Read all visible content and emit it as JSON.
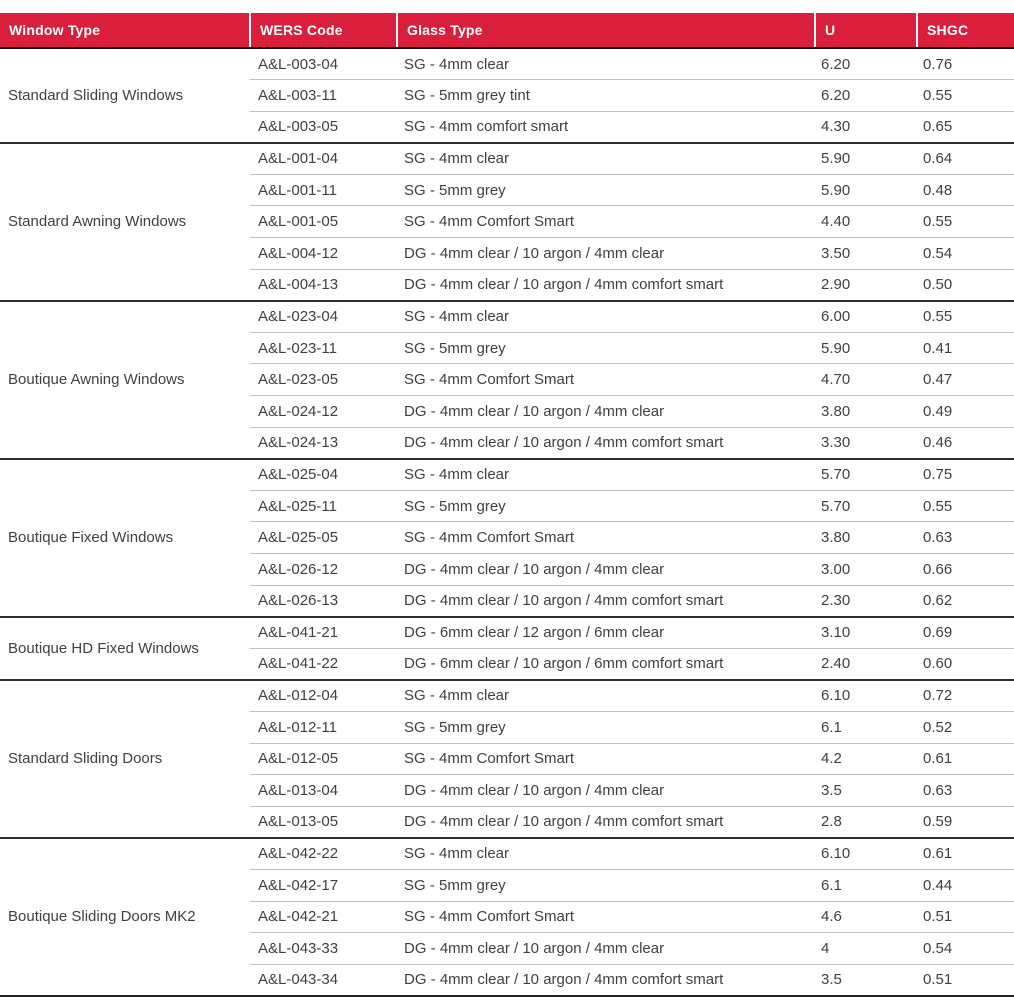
{
  "theme": {
    "header_bg": "#da1f3d",
    "header_text": "#ffffff",
    "body_text": "#3f3f46",
    "group_divider": "#2e2e32",
    "row_divider": "#c0c0c0",
    "header_underline": "#101010"
  },
  "table": {
    "columns": [
      {
        "key": "window_type",
        "label": "Window Type"
      },
      {
        "key": "code",
        "label": "WERS Code"
      },
      {
        "key": "glass",
        "label": "Glass Type"
      },
      {
        "key": "u",
        "label": "U"
      },
      {
        "key": "shgc",
        "label": "SHGC"
      }
    ],
    "groups": [
      {
        "window_type": "Standard Sliding Windows",
        "rows": [
          {
            "code": "A&L-003-04",
            "glass": "SG - 4mm clear",
            "u": "6.20",
            "shgc": "0.76"
          },
          {
            "code": "A&L-003-11",
            "glass": "SG - 5mm grey tint",
            "u": "6.20",
            "shgc": "0.55"
          },
          {
            "code": "A&L-003-05",
            "glass": "SG - 4mm comfort smart",
            "u": "4.30",
            "shgc": "0.65"
          }
        ]
      },
      {
        "window_type": "Standard Awning Windows",
        "rows": [
          {
            "code": "A&L-001-04",
            "glass": "SG - 4mm clear",
            "u": "5.90",
            "shgc": "0.64"
          },
          {
            "code": "A&L-001-11",
            "glass": "SG - 5mm grey",
            "u": "5.90",
            "shgc": "0.48"
          },
          {
            "code": "A&L-001-05",
            "glass": "SG - 4mm Comfort Smart",
            "u": "4.40",
            "shgc": "0.55"
          },
          {
            "code": "A&L-004-12",
            "glass": "DG - 4mm clear / 10 argon / 4mm clear",
            "u": "3.50",
            "shgc": "0.54"
          },
          {
            "code": "A&L-004-13",
            "glass": "DG - 4mm clear / 10 argon / 4mm comfort smart",
            "u": "2.90",
            "shgc": "0.50"
          }
        ]
      },
      {
        "window_type": "Boutique Awning Windows",
        "rows": [
          {
            "code": "A&L-023-04",
            "glass": "SG - 4mm clear",
            "u": "6.00",
            "shgc": "0.55"
          },
          {
            "code": "A&L-023-11",
            "glass": "SG - 5mm grey",
            "u": "5.90",
            "shgc": "0.41"
          },
          {
            "code": "A&L-023-05",
            "glass": "SG - 4mm Comfort Smart",
            "u": "4.70",
            "shgc": "0.47"
          },
          {
            "code": "A&L-024-12",
            "glass": "DG - 4mm clear / 10 argon / 4mm clear",
            "u": "3.80",
            "shgc": "0.49"
          },
          {
            "code": "A&L-024-13",
            "glass": "DG - 4mm clear / 10 argon / 4mm comfort smart",
            "u": "3.30",
            "shgc": "0.46"
          }
        ]
      },
      {
        "window_type": "Boutique Fixed Windows",
        "rows": [
          {
            "code": "A&L-025-04",
            "glass": "SG - 4mm clear",
            "u": "5.70",
            "shgc": "0.75"
          },
          {
            "code": "A&L-025-11",
            "glass": "SG - 5mm grey",
            "u": "5.70",
            "shgc": "0.55"
          },
          {
            "code": "A&L-025-05",
            "glass": "SG - 4mm Comfort Smart",
            "u": "3.80",
            "shgc": "0.63"
          },
          {
            "code": "A&L-026-12",
            "glass": "DG - 4mm clear / 10 argon / 4mm clear",
            "u": "3.00",
            "shgc": "0.66"
          },
          {
            "code": "A&L-026-13",
            "glass": "DG - 4mm clear / 10 argon / 4mm comfort smart",
            "u": "2.30",
            "shgc": "0.62"
          }
        ]
      },
      {
        "window_type": "Boutique HD Fixed Windows",
        "rows": [
          {
            "code": "A&L-041-21",
            "glass": "DG - 6mm clear / 12 argon / 6mm clear",
            "u": "3.10",
            "shgc": "0.69"
          },
          {
            "code": "A&L-041-22",
            "glass": "DG - 6mm clear / 10 argon / 6mm comfort smart",
            "u": "2.40",
            "shgc": "0.60"
          }
        ]
      },
      {
        "window_type": "Standard Sliding Doors",
        "rows": [
          {
            "code": "A&L-012-04",
            "glass": "SG - 4mm clear",
            "u": "6.10",
            "shgc": "0.72"
          },
          {
            "code": "A&L-012-11",
            "glass": "SG - 5mm grey",
            "u": "6.1",
            "shgc": "0.52"
          },
          {
            "code": "A&L-012-05",
            "glass": "SG - 4mm Comfort Smart",
            "u": "4.2",
            "shgc": "0.61"
          },
          {
            "code": "A&L-013-04",
            "glass": "DG - 4mm clear / 10 argon / 4mm clear",
            "u": "3.5",
            "shgc": "0.63"
          },
          {
            "code": "A&L-013-05",
            "glass": "DG - 4mm clear / 10 argon / 4mm comfort smart",
            "u": "2.8",
            "shgc": "0.59"
          }
        ]
      },
      {
        "window_type": "Boutique Sliding Doors MK2",
        "rows": [
          {
            "code": "A&L-042-22",
            "glass": "SG - 4mm clear",
            "u": "6.10",
            "shgc": "0.61"
          },
          {
            "code": "A&L-042-17",
            "glass": "SG - 5mm grey",
            "u": "6.1",
            "shgc": "0.44"
          },
          {
            "code": "A&L-042-21",
            "glass": "SG - 4mm Comfort Smart",
            "u": "4.6",
            "shgc": "0.51"
          },
          {
            "code": "A&L-043-33",
            "glass": "DG - 4mm clear / 10 argon / 4mm clear",
            "u": "4",
            "shgc": "0.54"
          },
          {
            "code": "A&L-043-34",
            "glass": "DG - 4mm clear / 10 argon / 4mm comfort smart",
            "u": "3.5",
            "shgc": "0.51"
          }
        ]
      }
    ]
  }
}
